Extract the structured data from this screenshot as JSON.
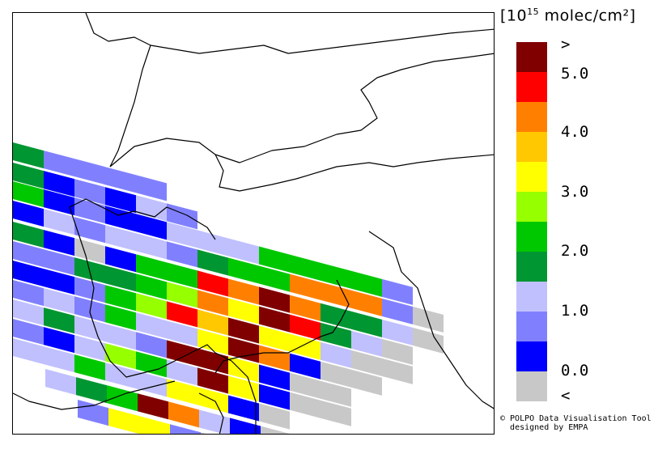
{
  "unit_label": {
    "bracket_open": "[",
    "base": "10",
    "exponent": "15",
    "unit": " molec/cm²",
    "bracket_close": "]"
  },
  "colorbar": {
    "colors": [
      "#800000",
      "#ff0000",
      "#ff8000",
      "#ffc800",
      "#ffff00",
      "#96ff00",
      "#00c800",
      "#009632",
      "#c0c0ff",
      "#8080ff",
      "#0000ff",
      "#c8c8c8"
    ],
    "labels": [
      ">",
      "5.0",
      "4.0",
      "3.0",
      "2.0",
      "1.0",
      "0.0",
      "<"
    ]
  },
  "credit": {
    "line1": "© POLPO Data Visualisation Tool",
    "line2": "designed by EMPA"
  },
  "map": {
    "pixel_colors_legend": {
      "DR": "#800000",
      "R": "#ff0000",
      "O": "#ff8000",
      "Y": "#ffc800",
      "YL": "#ffff00",
      "LG": "#96ff00",
      "G": "#00c800",
      "DG": "#009632",
      "LB": "#c0c0ff",
      "MB": "#8080ff",
      "B": "#0000ff",
      "GR": "#c8c8c8"
    },
    "scan_rows": [
      {
        "row": 0,
        "pixels": [
          "DG",
          "MB",
          "MB",
          "MB",
          "MB"
        ]
      },
      {
        "row": 1,
        "pixels": [
          "DG",
          "B",
          "MB",
          "B",
          "LB",
          "MB"
        ]
      },
      {
        "row": 2,
        "pixels": [
          "G",
          "B",
          "MB",
          "B",
          "B",
          "LB",
          "LB",
          "LB",
          "G",
          "G",
          "G",
          "G",
          "MB"
        ]
      },
      {
        "row": 3,
        "pixels": [
          "B",
          "LB",
          "MB",
          "LB",
          "LB",
          "MB",
          "DG",
          "G",
          "G",
          "O",
          "O",
          "O",
          "MB",
          "GR"
        ]
      },
      {
        "row": 4,
        "pixels": [
          "DG",
          "B",
          "GR",
          "B",
          "G",
          "G",
          "R",
          "O",
          "DR",
          "O",
          "DG",
          "DG",
          "LB",
          "GR"
        ]
      },
      {
        "row": 5,
        "pixels": [
          "MB",
          "MB",
          "DG",
          "DG",
          "G",
          "LG",
          "O",
          "YL",
          "DR",
          "R",
          "DG",
          "LB",
          "GR"
        ]
      },
      {
        "row": 6,
        "pixels": [
          "B",
          "B",
          "MB",
          "G",
          "LG",
          "R",
          "Y",
          "DR",
          "YL",
          "YL",
          "LB",
          "GR",
          "GR"
        ]
      },
      {
        "row": 7,
        "pixels": [
          "MB",
          "LB",
          "MB",
          "G",
          "LB",
          "LB",
          "YL",
          "DR",
          "O",
          "B",
          "GR",
          "GR"
        ]
      },
      {
        "row": 8,
        "pixels": [
          "LB",
          "DG",
          "LB",
          "LB",
          "MB",
          "DR",
          "DR",
          "YL",
          "B",
          "GR",
          "GR"
        ]
      },
      {
        "row": 9,
        "pixels": [
          "MB",
          "B",
          "LB",
          "LG",
          "G",
          "LB",
          "DR",
          "YL",
          "B",
          "GR",
          "GR"
        ]
      },
      {
        "row": 10,
        "pixels": [
          "LB",
          "LB",
          "G",
          "LB",
          "LB",
          "YL",
          "YL",
          "B",
          "GR"
        ]
      },
      {
        "row": 11,
        "pixels": [
          "LB",
          "DG",
          "G",
          "DR",
          "O",
          "LB",
          "B",
          "GR"
        ]
      },
      {
        "row": 12,
        "pixels": [
          "MB",
          "YL",
          "YL",
          "MB",
          "GR"
        ]
      }
    ]
  }
}
